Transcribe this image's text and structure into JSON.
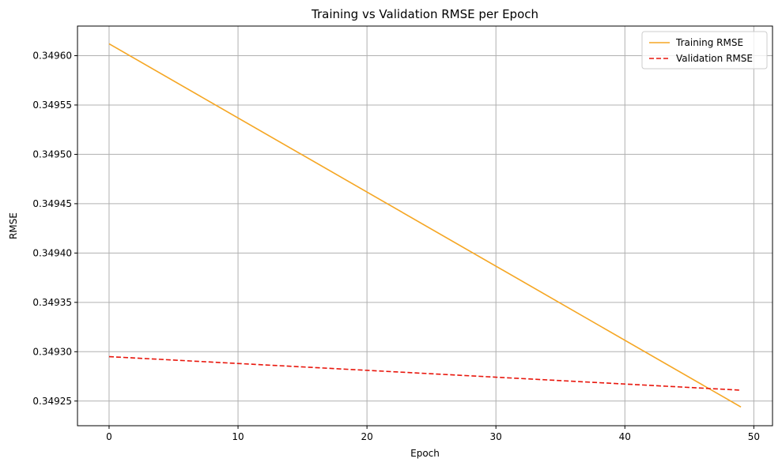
{
  "chart_data": {
    "type": "line",
    "title": "Training vs Validation RMSE per Epoch",
    "xlabel": "Epoch",
    "ylabel": "RMSE",
    "xlim": [
      -2.45,
      51.45
    ],
    "ylim": [
      0.349225,
      0.34963
    ],
    "xticks": [
      0,
      10,
      20,
      30,
      40,
      50
    ],
    "xtick_labels": [
      "0",
      "10",
      "20",
      "30",
      "40",
      "50"
    ],
    "yticks": [
      0.34925,
      0.3493,
      0.34935,
      0.3494,
      0.34945,
      0.3495,
      0.34955,
      0.3496
    ],
    "ytick_labels": [
      "0.34925",
      "0.34930",
      "0.34935",
      "0.34940",
      "0.34945",
      "0.34950",
      "0.34955",
      "0.34960"
    ],
    "grid": true,
    "legend_position": "top-right",
    "series": [
      {
        "name": "Training RMSE",
        "color": "#f5a623",
        "dash": "solid",
        "x": [
          0,
          49
        ],
        "y": [
          0.349612,
          0.349244
        ]
      },
      {
        "name": "Validation RMSE",
        "color": "#e8160c",
        "dash": "dashed",
        "x": [
          0,
          49
        ],
        "y": [
          0.349295,
          0.349261
        ]
      }
    ]
  }
}
